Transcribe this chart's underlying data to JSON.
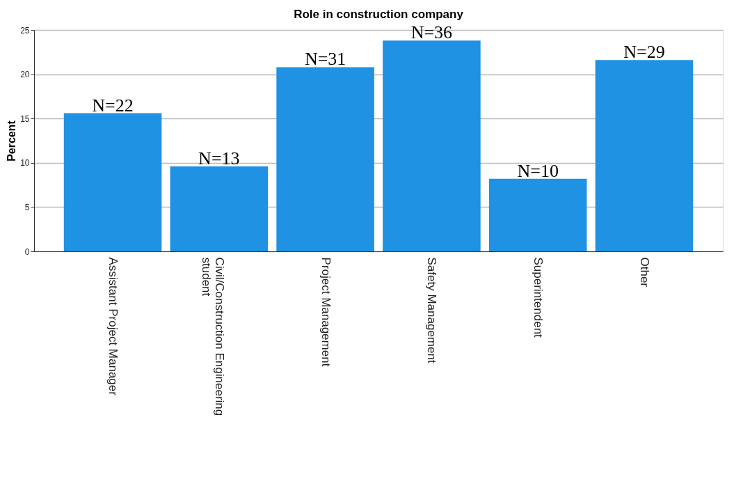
{
  "chart_data": {
    "type": "bar",
    "title": "Role in construction company",
    "ylabel": "Percent",
    "categories": [
      "Assistant Project Manager",
      "Civil/Construction Engineering student",
      "Project Management",
      "Safety Management",
      "Superintendent",
      "Other"
    ],
    "values": [
      15.6,
      9.6,
      20.8,
      23.8,
      8.2,
      21.6
    ],
    "color": "#1f92e3",
    "ylim": [
      0,
      25
    ],
    "yticks": [
      0,
      5,
      10,
      15,
      20,
      25
    ],
    "grid": "y",
    "annotations": [
      {
        "text": "N=22",
        "x": "Assistant Project Manager",
        "y": 15.6
      },
      {
        "text": "N=13",
        "x": "Civil/Construction Engineering student",
        "y": 9.6
      },
      {
        "text": "N=31",
        "x": "Project Management",
        "y": 20.8
      },
      {
        "text": "N=36",
        "x": "Safety Management",
        "y": 23.8
      },
      {
        "text": "N=10",
        "x": "Superintendent",
        "y": 8.2
      },
      {
        "text": "N=29",
        "x": "Other",
        "y": 21.6
      }
    ]
  }
}
